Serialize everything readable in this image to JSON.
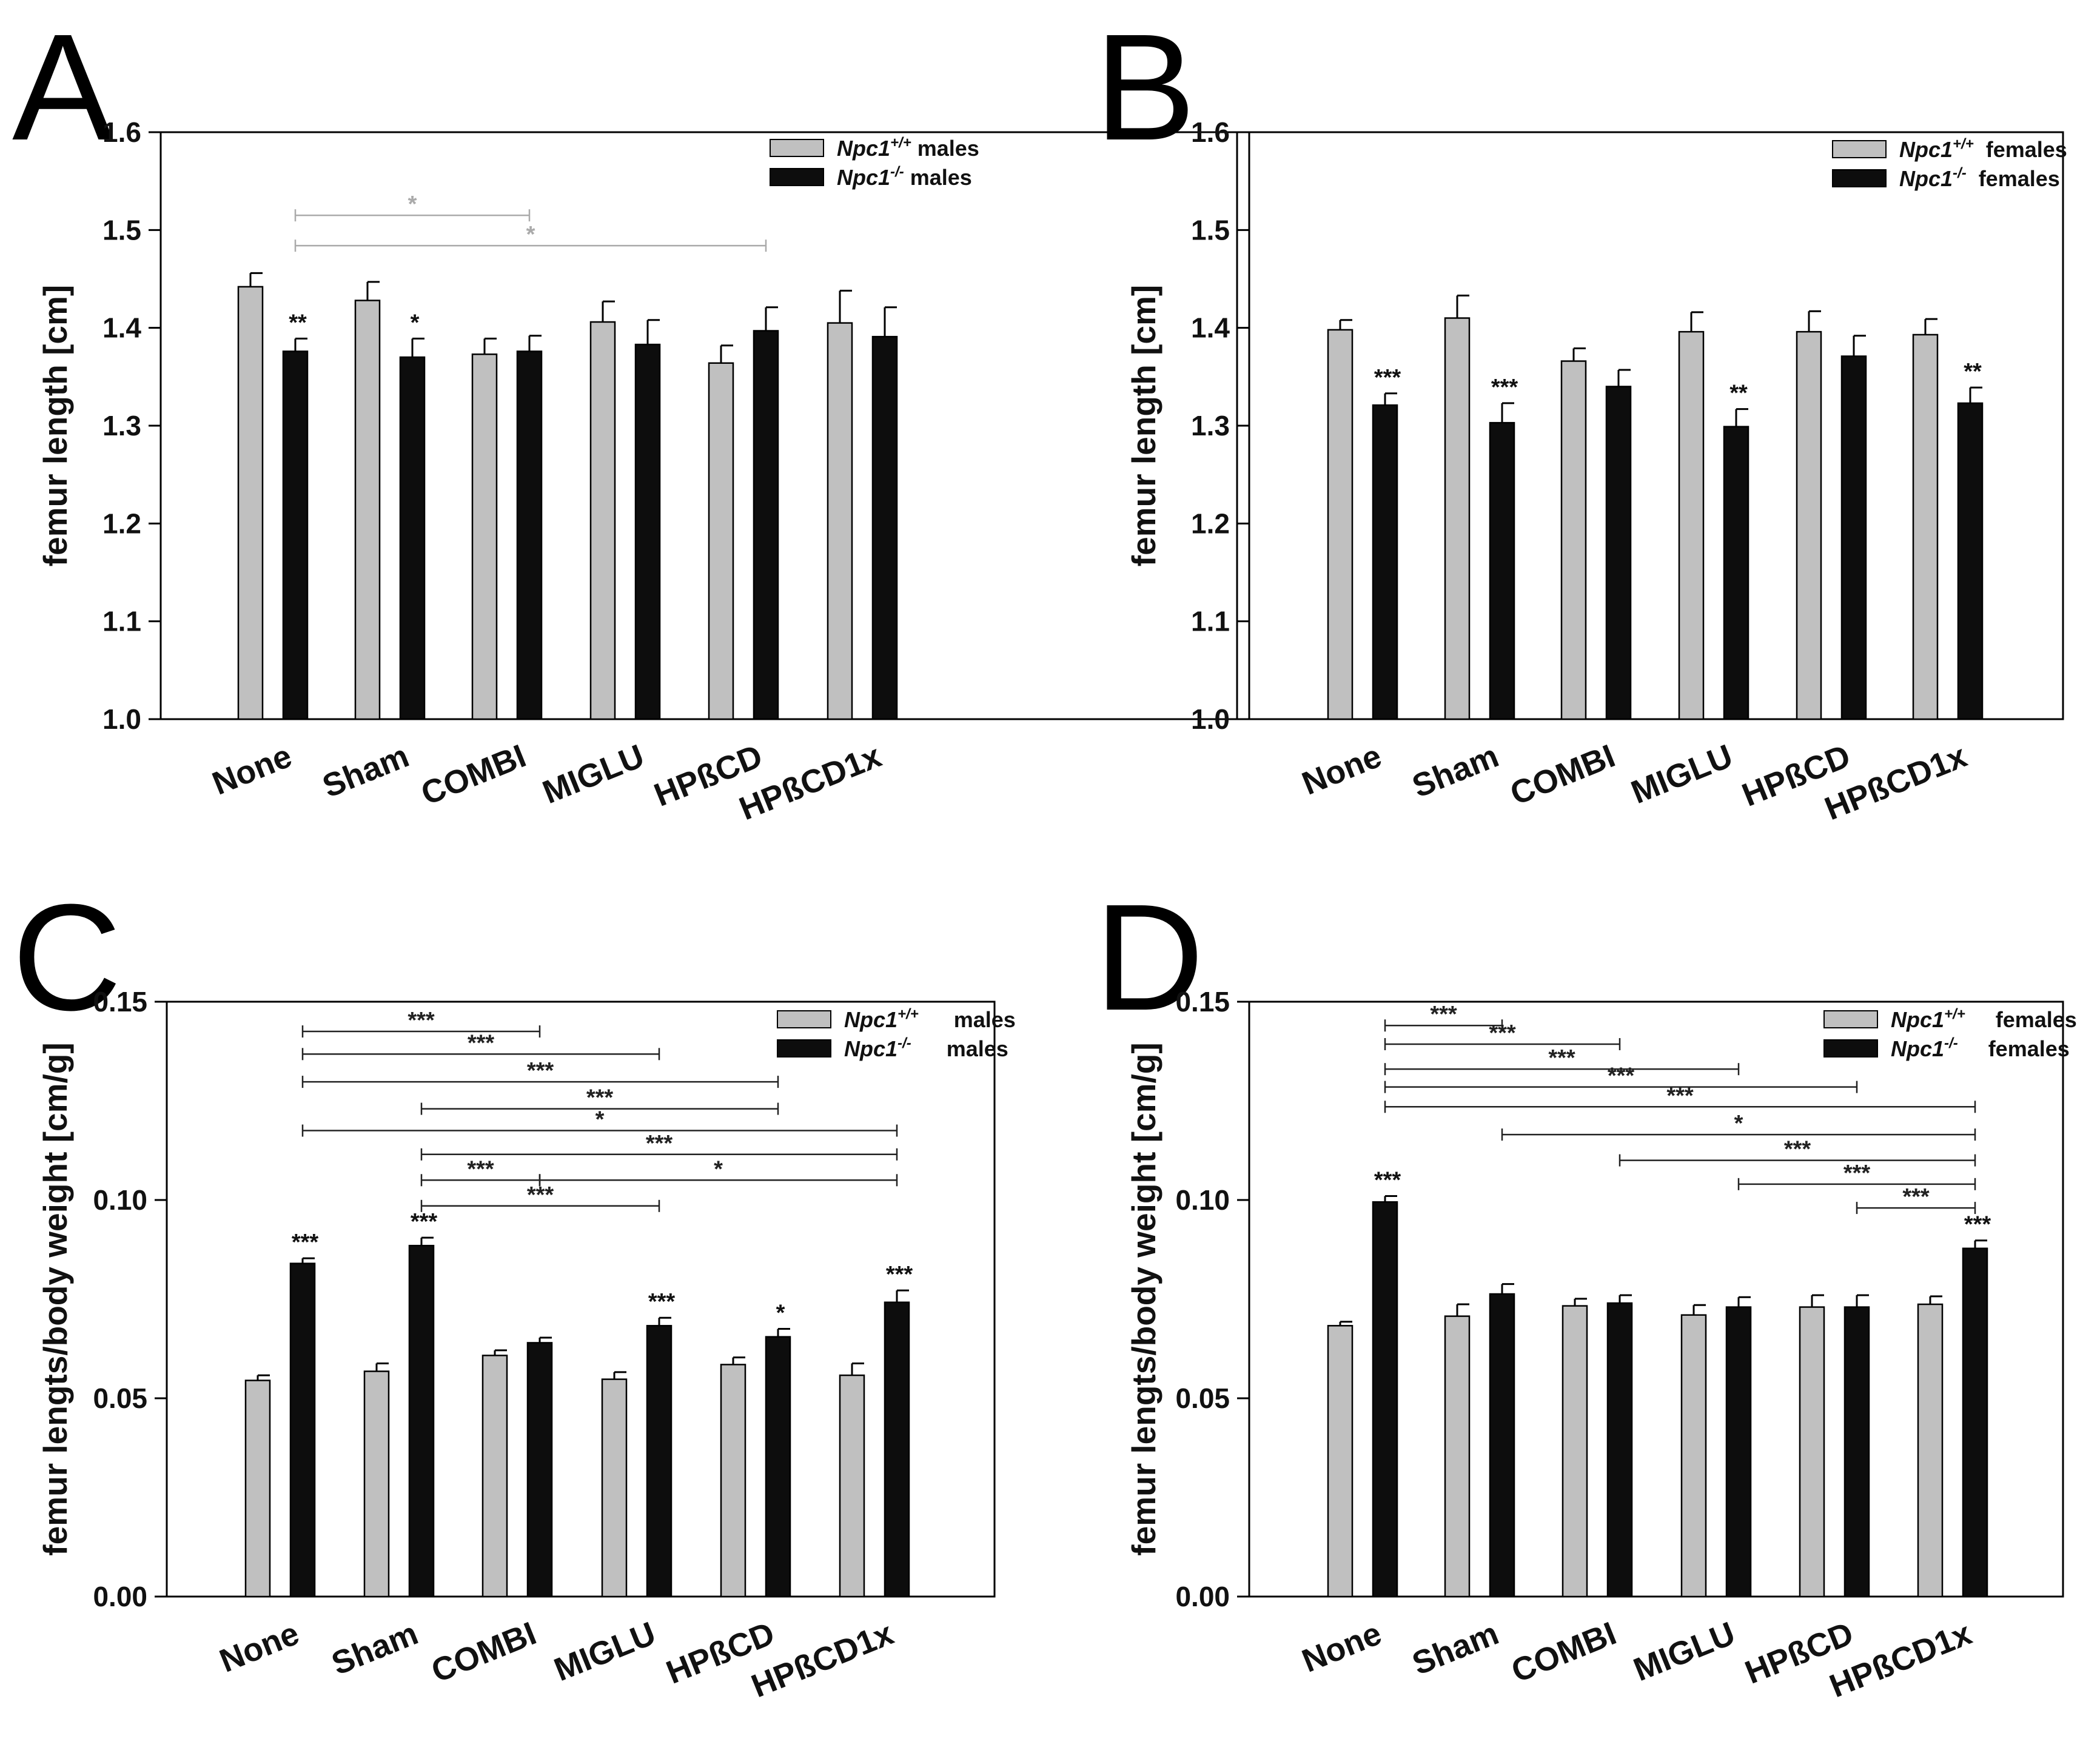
{
  "chart_data": [
    {
      "panel": "A",
      "type": "bar",
      "ylabel": "femur length [cm]",
      "ylim": [
        1.0,
        1.6
      ],
      "yticks": [
        "1.0",
        "1.1",
        "1.2",
        "1.3",
        "1.4",
        "1.5",
        "1.6"
      ],
      "categories": [
        "None",
        "Sham",
        "COMBI",
        "MIGLU",
        "HPßCD",
        "HPßCD1x"
      ],
      "series": [
        {
          "name_italic": "Npc1",
          "name_sup": "+/+",
          "name_rest": "males",
          "color": "#c0c0c0",
          "values": [
            1.442,
            1.428,
            1.373,
            1.406,
            1.364,
            1.405
          ],
          "errors": [
            0.014,
            0.019,
            0.016,
            0.021,
            0.018,
            0.033
          ]
        },
        {
          "name_italic": "Npc1",
          "name_sup": "-/-",
          "name_rest": "males",
          "color": "#0d0d0d",
          "values": [
            1.376,
            1.37,
            1.376,
            1.383,
            1.397,
            1.391
          ],
          "errors": [
            0.013,
            0.019,
            0.016,
            0.025,
            0.024,
            0.03
          ]
        }
      ],
      "bar_sig": [
        {
          "cat": 0,
          "series": 1,
          "label": "**"
        },
        {
          "cat": 1,
          "series": 1,
          "label": "*"
        }
      ],
      "brackets": [
        {
          "from": 0,
          "to": 2,
          "y": 1.515,
          "label": "*",
          "color": "#aaaaaa"
        },
        {
          "from": 0,
          "to": 4,
          "y": 1.484,
          "label": "*",
          "color": "#aaaaaa"
        }
      ]
    },
    {
      "panel": "B",
      "type": "bar",
      "ylabel": "femur length [cm]",
      "ylim": [
        1.0,
        1.6
      ],
      "yticks": [
        "1.0",
        "1.1",
        "1.2",
        "1.3",
        "1.4",
        "1.5",
        "1.6"
      ],
      "categories": [
        "None",
        "Sham",
        "COMBI",
        "MIGLU",
        "HPßCD",
        "HPßCD1x"
      ],
      "series": [
        {
          "name_italic": "Npc1",
          "name_sup": "+/+",
          "name_rest": "females",
          "color": "#c0c0c0",
          "values": [
            1.398,
            1.41,
            1.366,
            1.396,
            1.396,
            1.393
          ],
          "errors": [
            0.01,
            0.023,
            0.013,
            0.02,
            0.021,
            0.016
          ]
        },
        {
          "name_italic": "Npc1",
          "name_sup": "-/-",
          "name_rest": "females",
          "color": "#0d0d0d",
          "values": [
            1.321,
            1.303,
            1.34,
            1.299,
            1.371,
            1.323
          ],
          "errors": [
            0.012,
            0.02,
            0.017,
            0.018,
            0.021,
            0.016
          ]
        }
      ],
      "bar_sig": [
        {
          "cat": 0,
          "series": 1,
          "label": "***"
        },
        {
          "cat": 1,
          "series": 1,
          "label": "***"
        },
        {
          "cat": 3,
          "series": 1,
          "label": "**"
        },
        {
          "cat": 5,
          "series": 1,
          "label": "**"
        }
      ],
      "brackets": []
    },
    {
      "panel": "C",
      "type": "bar",
      "ylabel": "femur lengts/body weight [cm/g]",
      "ylim": [
        0.0,
        0.15
      ],
      "yticks": [
        "0.00",
        "0.05",
        "0.10",
        "0.15"
      ],
      "categories": [
        "None",
        "Sham",
        "COMBI",
        "MIGLU",
        "HPßCD",
        "HPßCD1x"
      ],
      "series": [
        {
          "name_italic": "Npc1",
          "name_sup": "+/+",
          "name_rest": "males",
          "color": "#c0c0c0",
          "values": [
            0.0545,
            0.0568,
            0.0608,
            0.0548,
            0.0585,
            0.0558
          ],
          "errors": [
            0.0013,
            0.002,
            0.0013,
            0.0018,
            0.0018,
            0.003
          ]
        },
        {
          "name_italic": "Npc1",
          "name_sup": "-/-",
          "name_rest": "males",
          "color": "#0d0d0d",
          "values": [
            0.084,
            0.0885,
            0.064,
            0.0683,
            0.0655,
            0.0742
          ],
          "errors": [
            0.0013,
            0.002,
            0.0013,
            0.002,
            0.002,
            0.003
          ]
        }
      ],
      "bar_sig": [
        {
          "cat": 0,
          "series": 1,
          "label": "***"
        },
        {
          "cat": 1,
          "series": 1,
          "label": "***"
        },
        {
          "cat": 3,
          "series": 1,
          "label": "***"
        },
        {
          "cat": 4,
          "series": 1,
          "label": "*"
        },
        {
          "cat": 5,
          "series": 1,
          "label": "***"
        }
      ],
      "brackets": [
        {
          "from": 0,
          "to": 2,
          "y": 0.1425,
          "label": "***"
        },
        {
          "from": 0,
          "to": 3,
          "y": 0.1368,
          "label": "***"
        },
        {
          "from": 0,
          "to": 4,
          "y": 0.1298,
          "label": "***"
        },
        {
          "from": 1,
          "to": 4,
          "y": 0.123,
          "label": "***"
        },
        {
          "from": 0,
          "to": 5,
          "y": 0.1175,
          "label": "*"
        },
        {
          "from": 1,
          "to": 5,
          "y": 0.1115,
          "label": "***"
        },
        {
          "from": 1,
          "to": 2,
          "y": 0.105,
          "label": "***"
        },
        {
          "from": 2,
          "to": 5,
          "y": 0.105,
          "label": "*"
        },
        {
          "from": 1,
          "to": 3,
          "y": 0.0985,
          "label": "***"
        }
      ]
    },
    {
      "panel": "D",
      "type": "bar",
      "ylabel": "femur lengts/body weight [cm/g]",
      "ylim": [
        0.0,
        0.15
      ],
      "yticks": [
        "0.00",
        "0.05",
        "0.10",
        "0.15"
      ],
      "categories": [
        "None",
        "Sham",
        "COMBI",
        "MIGLU",
        "HPßCD",
        "HPßCD1x"
      ],
      "series": [
        {
          "name_italic": "Npc1",
          "name_sup": "+/+",
          "name_rest": "females",
          "color": "#c0c0c0",
          "values": [
            0.0683,
            0.0707,
            0.0733,
            0.071,
            0.073,
            0.0737
          ],
          "errors": [
            0.001,
            0.003,
            0.0018,
            0.0025,
            0.003,
            0.002
          ]
        },
        {
          "name_italic": "Npc1",
          "name_sup": "-/-",
          "name_rest": "females",
          "color": "#0d0d0d",
          "values": [
            0.0995,
            0.0763,
            0.074,
            0.073,
            0.073,
            0.0878
          ],
          "errors": [
            0.0015,
            0.0025,
            0.002,
            0.0025,
            0.003,
            0.002
          ]
        }
      ],
      "bar_sig": [
        {
          "cat": 0,
          "series": 1,
          "label": "***"
        },
        {
          "cat": 5,
          "series": 1,
          "label": "***"
        }
      ],
      "brackets": [
        {
          "from": 0,
          "to": 1,
          "y": 0.144,
          "label": "***"
        },
        {
          "from": 0,
          "to": 2,
          "y": 0.1393,
          "label": "***"
        },
        {
          "from": 0,
          "to": 3,
          "y": 0.133,
          "label": "***"
        },
        {
          "from": 0,
          "to": 4,
          "y": 0.1285,
          "label": "***"
        },
        {
          "from": 0,
          "to": 5,
          "y": 0.1235,
          "label": "***"
        },
        {
          "from": 1,
          "to": 5,
          "y": 0.1165,
          "label": "*"
        },
        {
          "from": 2,
          "to": 5,
          "y": 0.11,
          "label": "***"
        },
        {
          "from": 3,
          "to": 5,
          "y": 0.104,
          "label": "***"
        },
        {
          "from": 4,
          "to": 5,
          "y": 0.098,
          "label": "***"
        }
      ]
    }
  ]
}
